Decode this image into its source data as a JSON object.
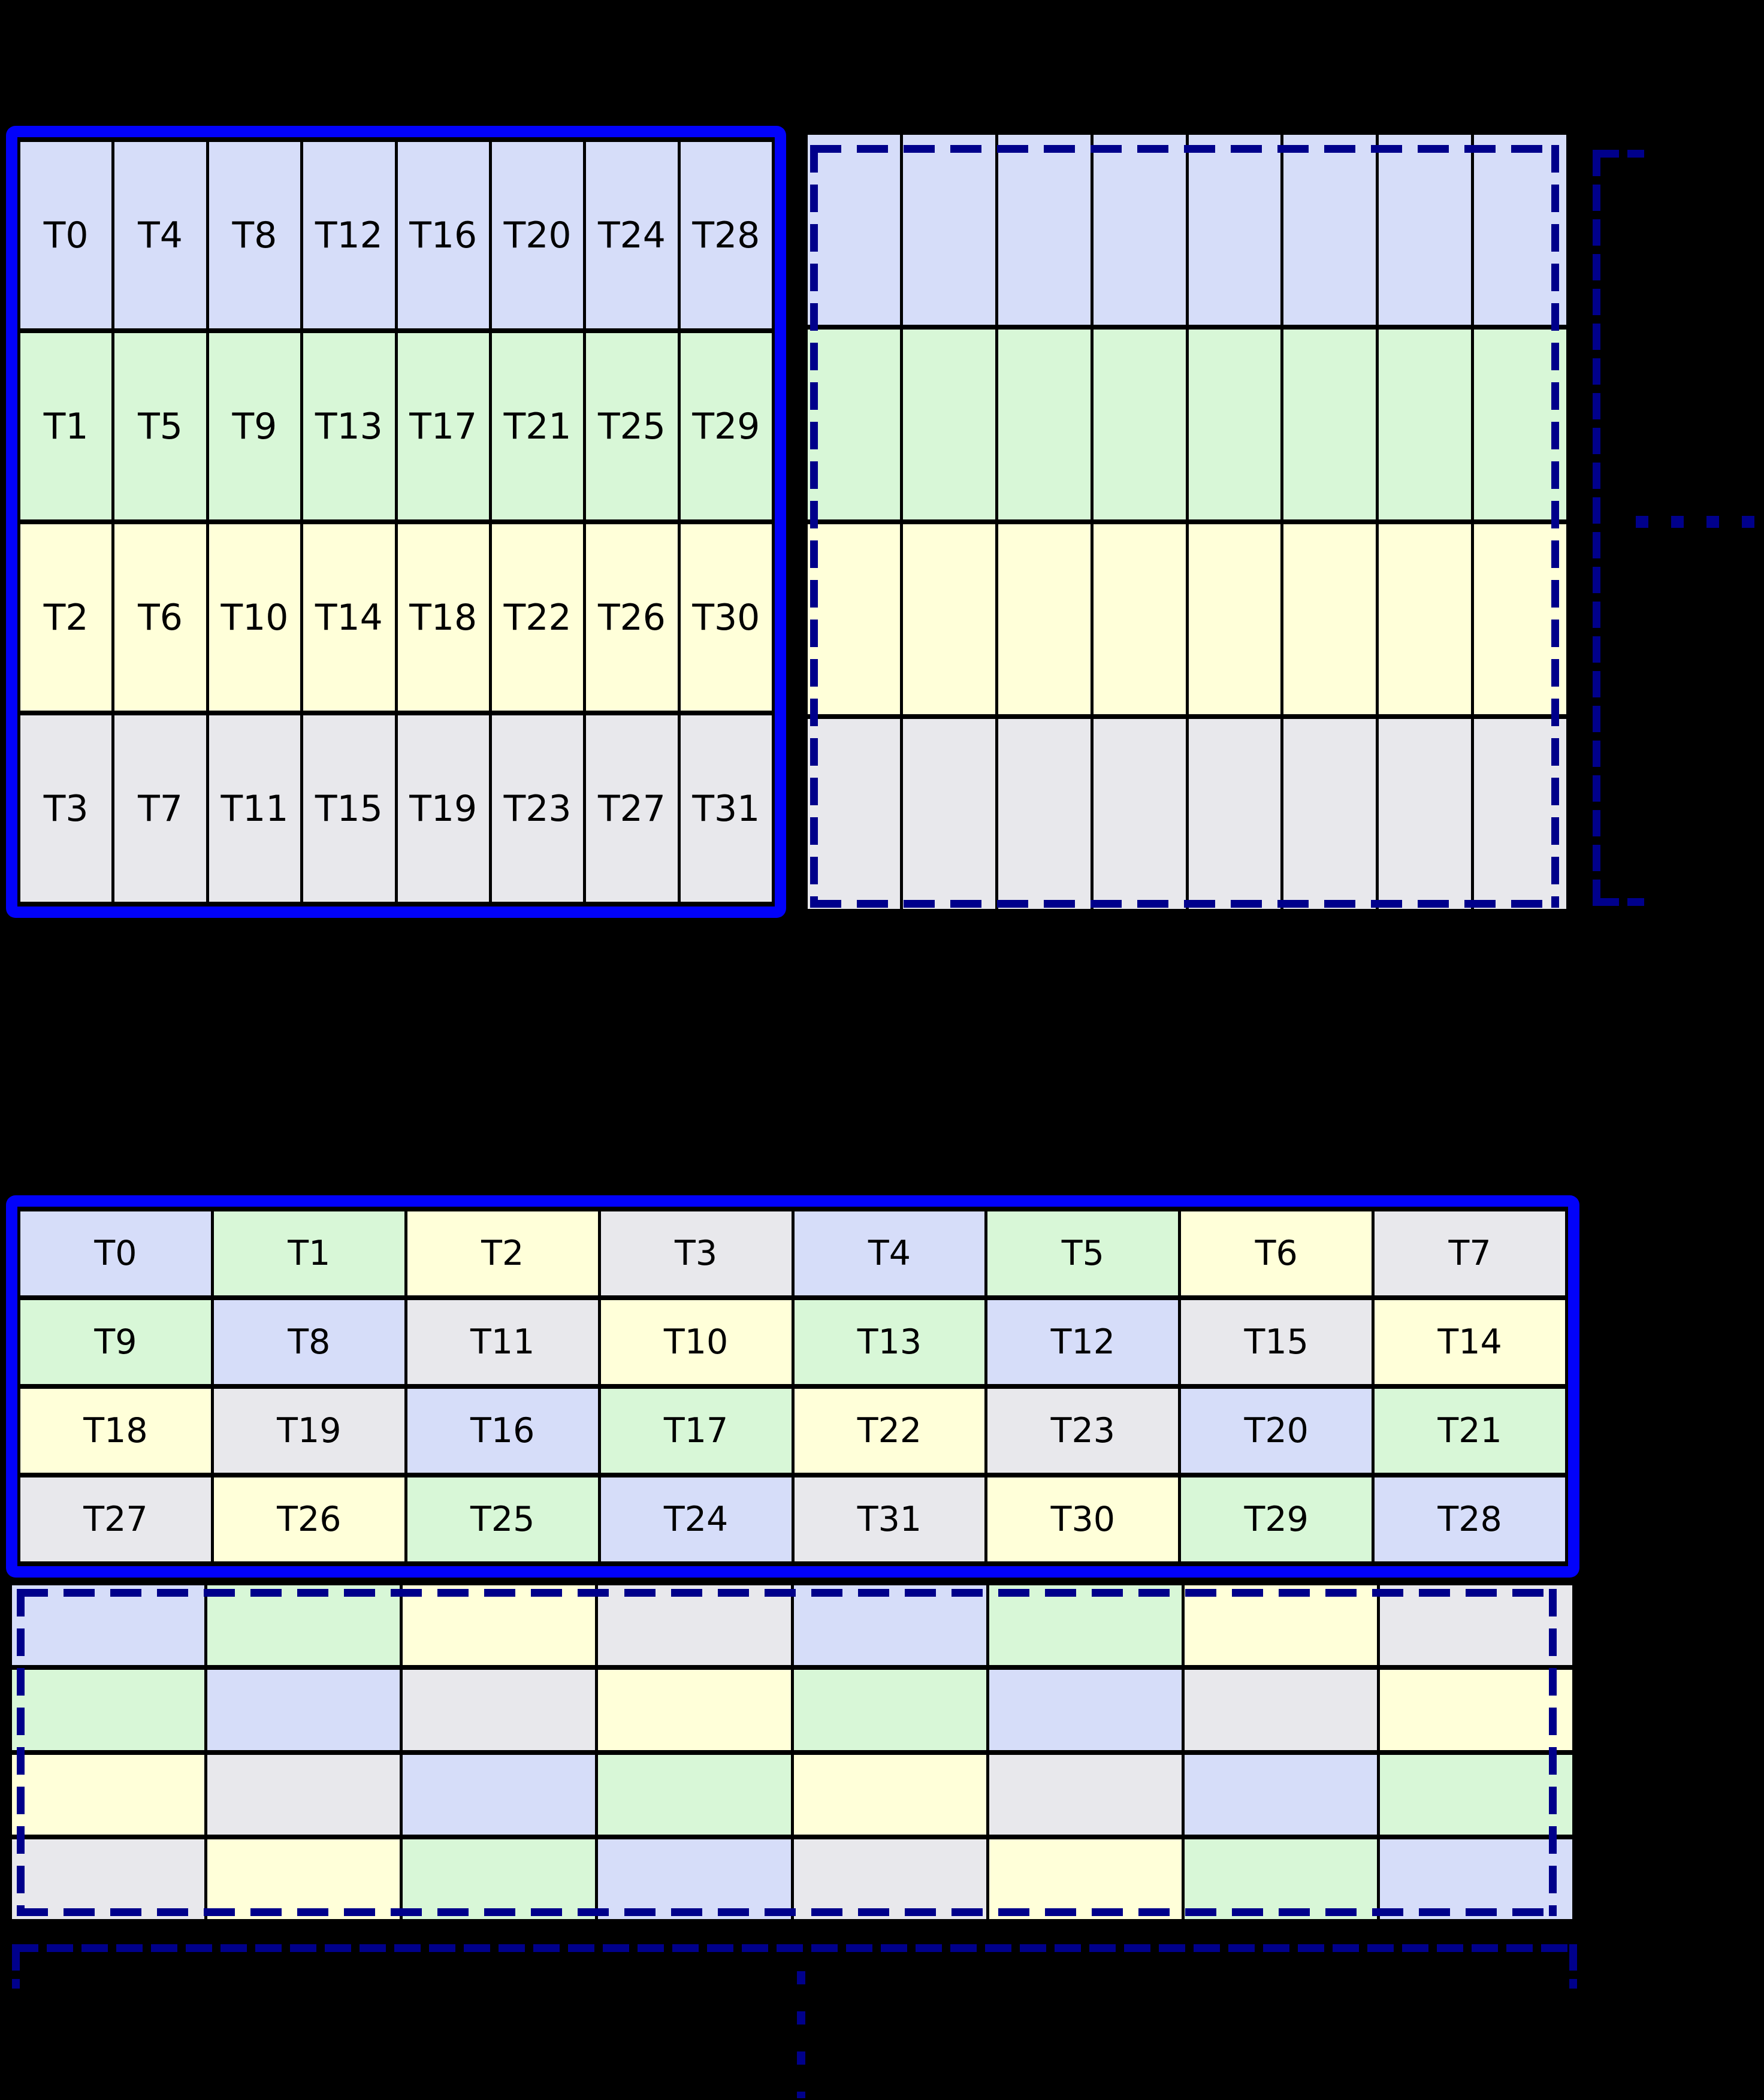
{
  "colors": {
    "background": "#000000",
    "outline": "#0202fa",
    "dashed": "#00008b",
    "grid_line": "#000000",
    "label_text": "#000000",
    "row_blue": "#d6ddf9",
    "row_green": "#d8f7d7",
    "row_yellow": "#ffffd9",
    "row_gray": "#e8e8ec"
  },
  "icons": {
    "right_bracket": "dashed-bracket-icon",
    "right_dots": "horizontal-ellipsis-icon",
    "bottom_bracket": "dashed-bracket-icon",
    "bottom_dots": "vertical-ellipsis-icon"
  },
  "top_section": {
    "left_grid": {
      "row_colors": [
        "blue",
        "green",
        "yellow",
        "gray"
      ],
      "rows": [
        [
          "T0",
          "T4",
          "T8",
          "T12",
          "T16",
          "T20",
          "T24",
          "T28"
        ],
        [
          "T1",
          "T5",
          "T9",
          "T13",
          "T17",
          "T21",
          "T25",
          "T29"
        ],
        [
          "T2",
          "T6",
          "T10",
          "T14",
          "T18",
          "T22",
          "T26",
          "T30"
        ],
        [
          "T3",
          "T7",
          "T11",
          "T15",
          "T19",
          "T23",
          "T27",
          "T31"
        ]
      ]
    },
    "right_grid": {
      "cols": 8,
      "row_colors": [
        "blue",
        "green",
        "yellow",
        "gray"
      ]
    }
  },
  "bottom_section": {
    "labeled_grid": {
      "rows": [
        [
          {
            "t": "T0",
            "c": "blue"
          },
          {
            "t": "T1",
            "c": "green"
          },
          {
            "t": "T2",
            "c": "yellow"
          },
          {
            "t": "T3",
            "c": "gray"
          },
          {
            "t": "T4",
            "c": "blue"
          },
          {
            "t": "T5",
            "c": "green"
          },
          {
            "t": "T6",
            "c": "yellow"
          },
          {
            "t": "T7",
            "c": "gray"
          }
        ],
        [
          {
            "t": "T9",
            "c": "green"
          },
          {
            "t": "T8",
            "c": "blue"
          },
          {
            "t": "T11",
            "c": "gray"
          },
          {
            "t": "T10",
            "c": "yellow"
          },
          {
            "t": "T13",
            "c": "green"
          },
          {
            "t": "T12",
            "c": "blue"
          },
          {
            "t": "T15",
            "c": "gray"
          },
          {
            "t": "T14",
            "c": "yellow"
          }
        ],
        [
          {
            "t": "T18",
            "c": "yellow"
          },
          {
            "t": "T19",
            "c": "gray"
          },
          {
            "t": "T16",
            "c": "blue"
          },
          {
            "t": "T17",
            "c": "green"
          },
          {
            "t": "T22",
            "c": "yellow"
          },
          {
            "t": "T23",
            "c": "gray"
          },
          {
            "t": "T20",
            "c": "blue"
          },
          {
            "t": "T21",
            "c": "green"
          }
        ],
        [
          {
            "t": "T27",
            "c": "gray"
          },
          {
            "t": "T26",
            "c": "yellow"
          },
          {
            "t": "T25",
            "c": "green"
          },
          {
            "t": "T24",
            "c": "blue"
          },
          {
            "t": "T31",
            "c": "gray"
          },
          {
            "t": "T30",
            "c": "yellow"
          },
          {
            "t": "T29",
            "c": "green"
          },
          {
            "t": "T28",
            "c": "blue"
          }
        ]
      ]
    },
    "empty_grid": {
      "pattern": [
        [
          "blue",
          "green",
          "yellow",
          "gray",
          "blue",
          "green",
          "yellow",
          "gray"
        ],
        [
          "green",
          "blue",
          "gray",
          "yellow",
          "green",
          "blue",
          "gray",
          "yellow"
        ],
        [
          "yellow",
          "gray",
          "blue",
          "green",
          "yellow",
          "gray",
          "blue",
          "green"
        ],
        [
          "gray",
          "yellow",
          "green",
          "blue",
          "gray",
          "yellow",
          "green",
          "blue"
        ]
      ]
    }
  }
}
